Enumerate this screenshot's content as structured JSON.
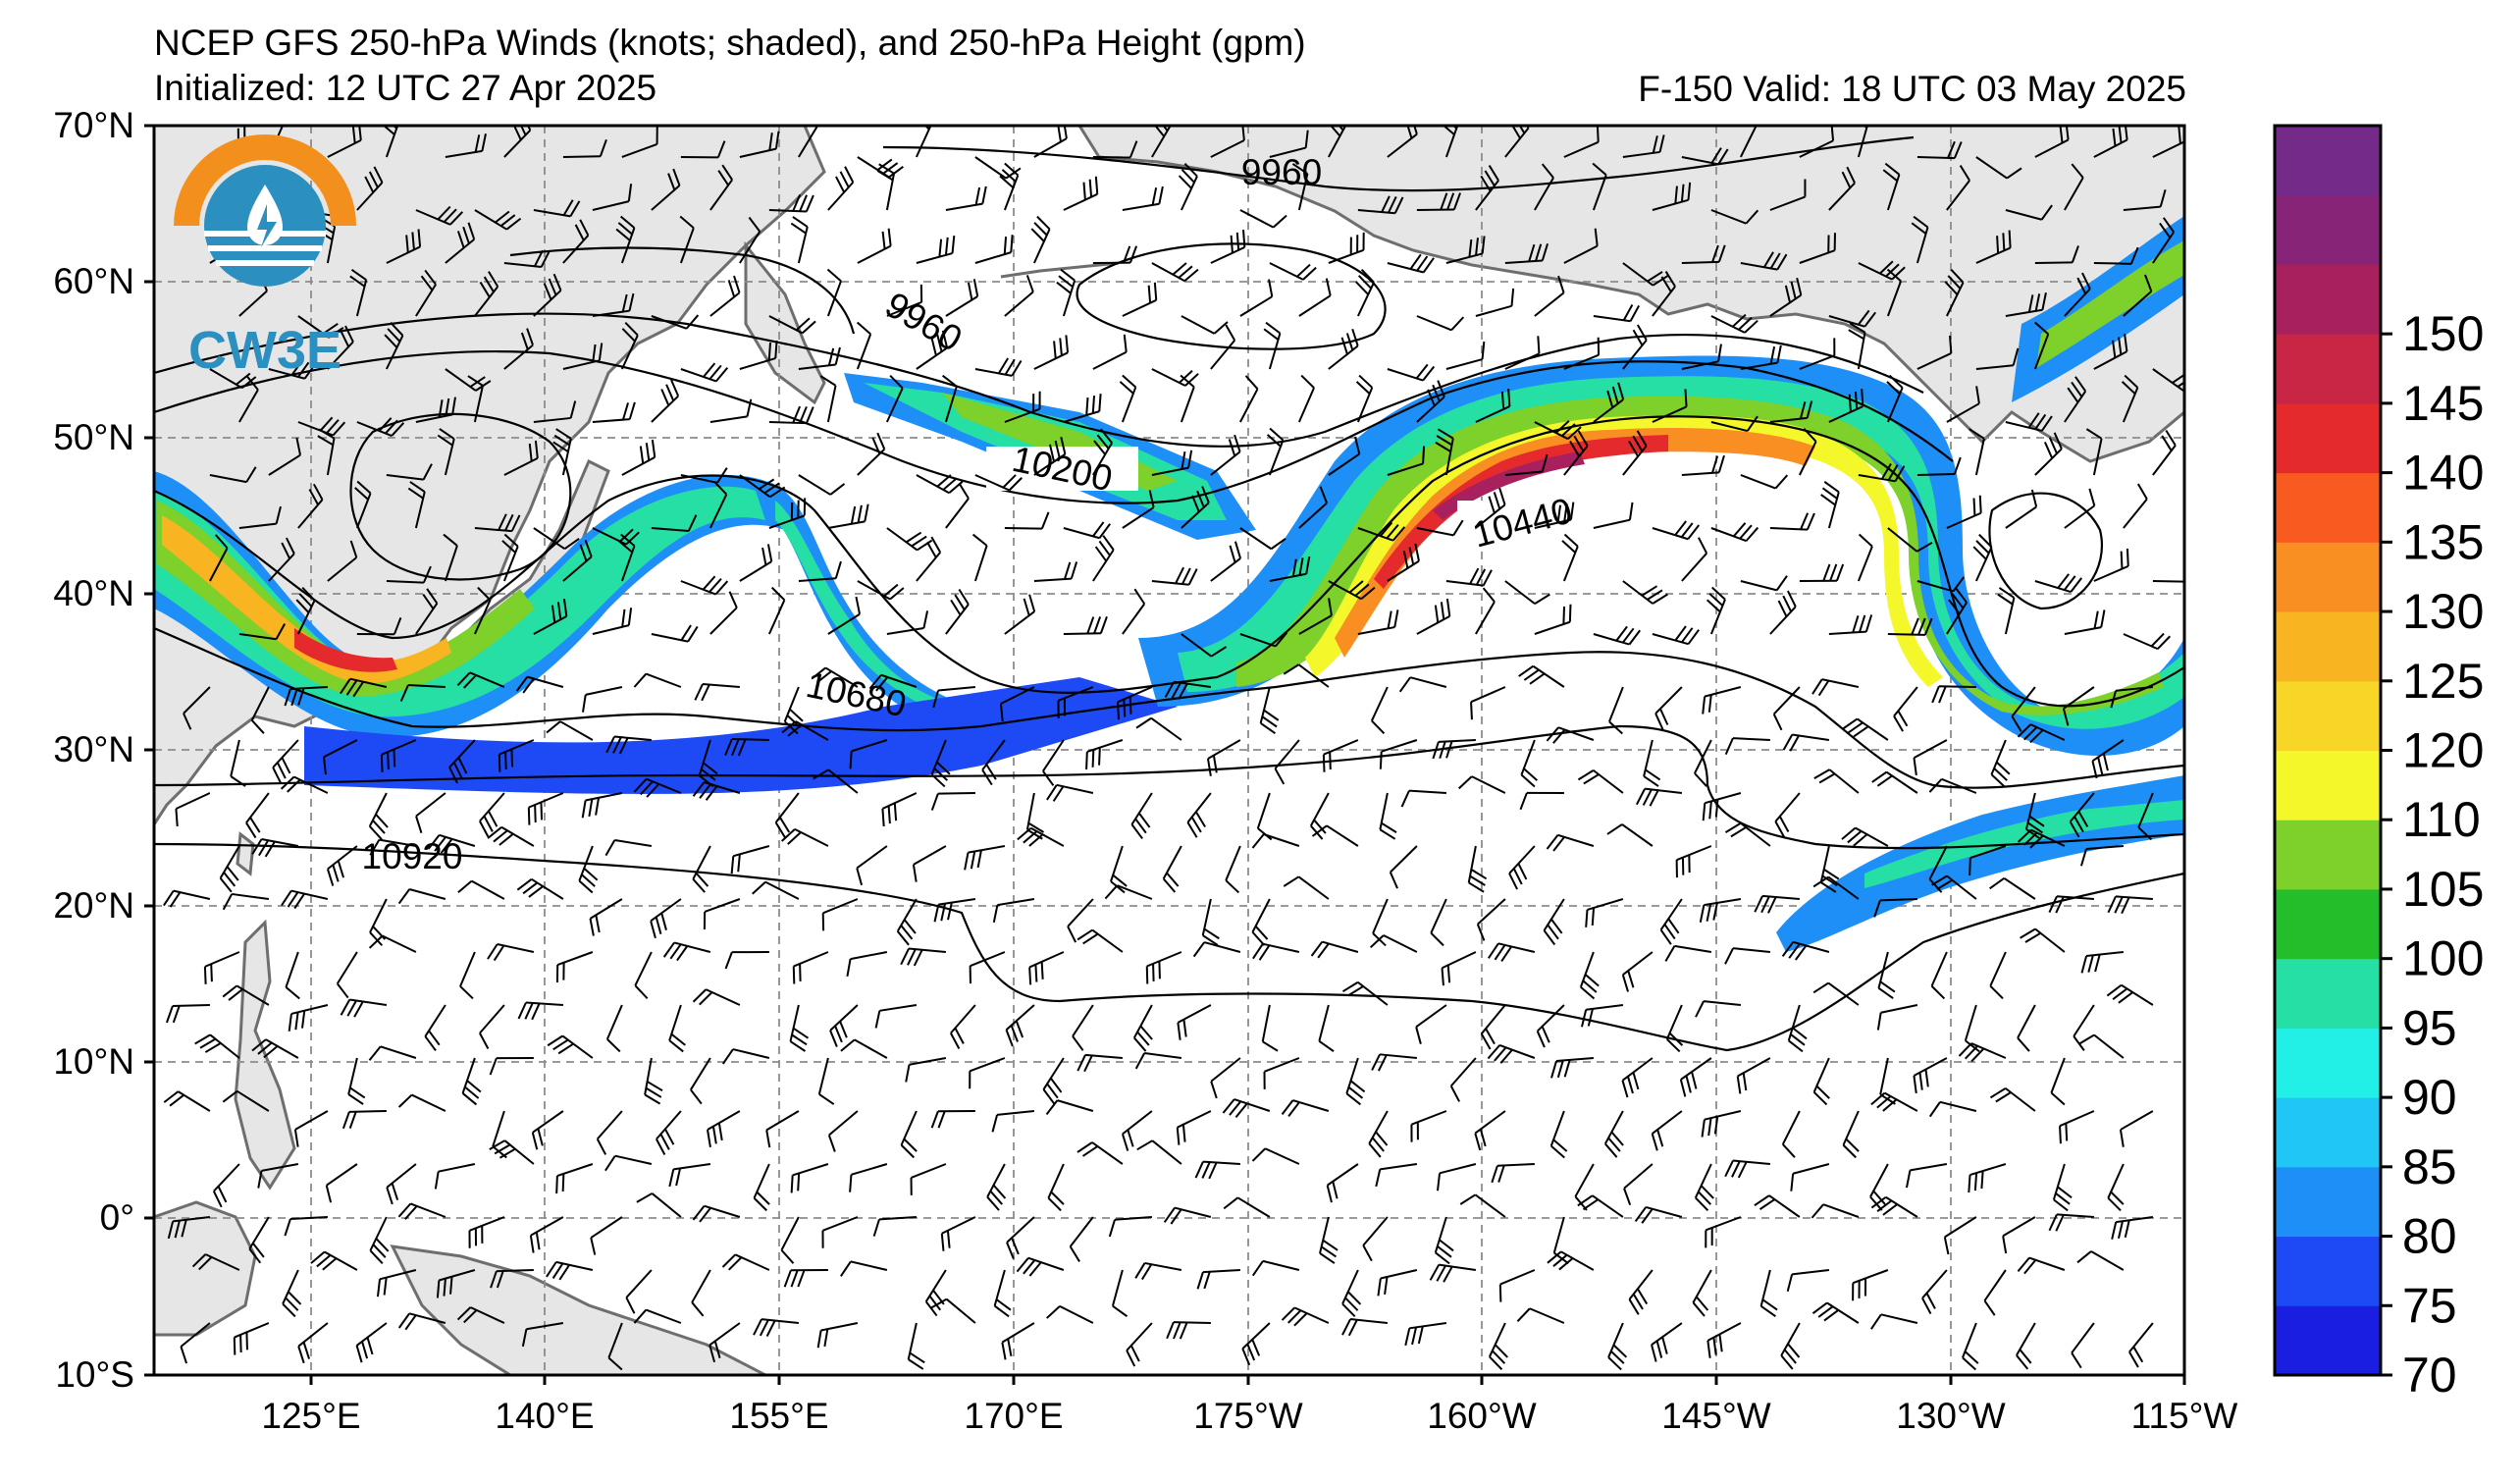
{
  "title": {
    "line1": "NCEP GFS 250-hPa Winds (knots; shaded), and 250-hPa Height (gpm)",
    "init": "Initialized: 12 UTC 27 Apr 2025",
    "valid": "F-150  Valid: 18 UTC 03 May 2025"
  },
  "logo": {
    "text": "CW3E",
    "colors": {
      "orange": "#f3901d",
      "blue": "#2b8fc0"
    }
  },
  "axes": {
    "lat_labels": [
      "70°N",
      "60°N",
      "50°N",
      "40°N",
      "30°N",
      "20°N",
      "10°N",
      "0°",
      "10°S"
    ],
    "lon_labels": [
      "125°E",
      "140°E",
      "155°E",
      "170°E",
      "175°W",
      "160°W",
      "145°W",
      "130°W",
      "115°W"
    ]
  },
  "contour_labels": [
    "9960",
    "9960",
    "10200",
    "10440",
    "10680",
    "10920"
  ],
  "colorbar": {
    "ticks": [
      "70",
      "75",
      "80",
      "85",
      "90",
      "95",
      "100",
      "105",
      "110",
      "120",
      "125",
      "130",
      "135",
      "140",
      "145",
      "150"
    ],
    "colors": [
      "#1a1ee0",
      "#1e4af5",
      "#1f8ff8",
      "#20c6f6",
      "#22f0e6",
      "#26dfa4",
      "#24be2a",
      "#7ed02a",
      "#f4f82a",
      "#f8d628",
      "#f9b422",
      "#f98e22",
      "#f95a20",
      "#e42a2c",
      "#c82644",
      "#a8205e",
      "#882478",
      "#742a88"
    ]
  },
  "style": {
    "land": "#e6e6e6",
    "coast": "#6e6e6e",
    "grid": "#8c8c8c"
  }
}
